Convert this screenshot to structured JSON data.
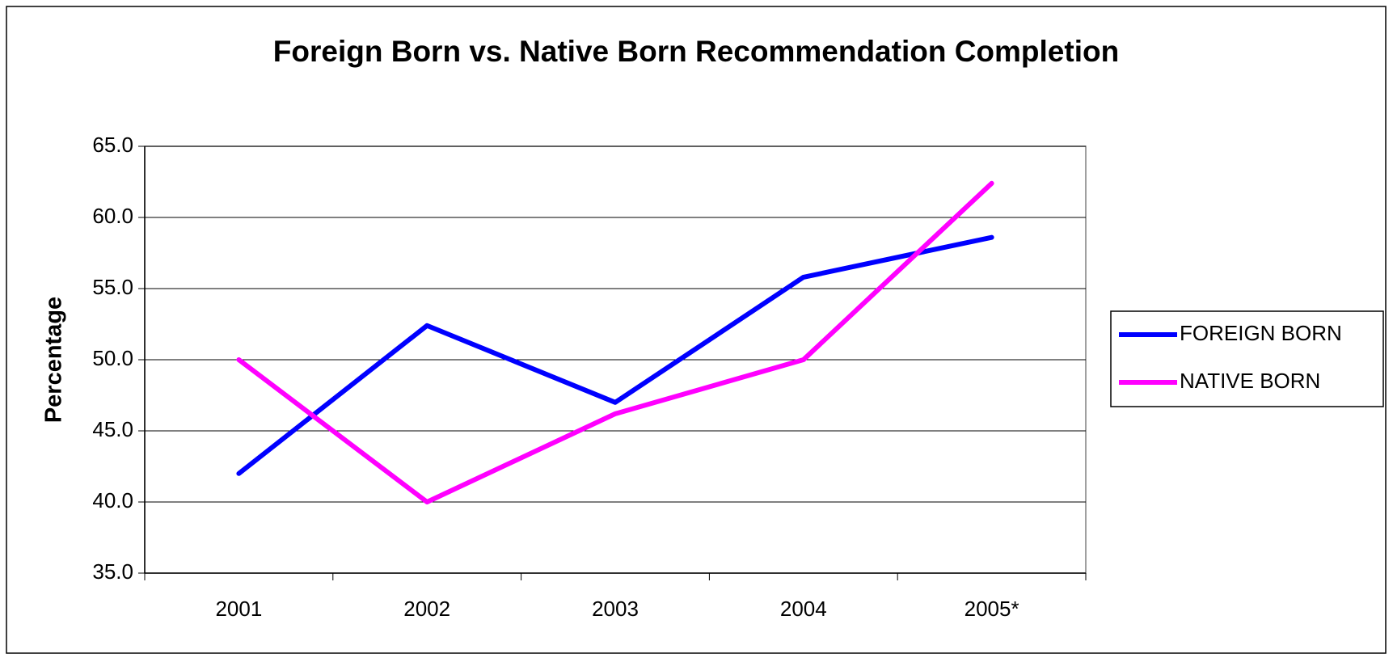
{
  "chart_data": {
    "type": "line",
    "title": "Foreign Born vs. Native Born Recommendation Completion",
    "y_label": "Percentage",
    "categories": [
      "2001",
      "2002",
      "2003",
      "2004",
      "2005*"
    ],
    "series": [
      {
        "name": "FOREIGN BORN",
        "color": "#0000ff",
        "values": [
          42.0,
          52.4,
          47.0,
          55.8,
          58.6
        ]
      },
      {
        "name": "NATIVE BORN",
        "color": "#ff00ff",
        "values": [
          50.0,
          40.0,
          46.2,
          50.0,
          62.4
        ]
      }
    ],
    "ylim": [
      35,
      65
    ],
    "yticks": [
      {
        "value": 35,
        "label": "35.0"
      },
      {
        "value": 40,
        "label": "40.0"
      },
      {
        "value": 45,
        "label": "45.0"
      },
      {
        "value": 50,
        "label": "50.0"
      },
      {
        "value": 55,
        "label": "55.0"
      },
      {
        "value": 60,
        "label": "60.0"
      },
      {
        "value": 65,
        "label": "65.0"
      }
    ],
    "grid": true,
    "legend": "right"
  }
}
